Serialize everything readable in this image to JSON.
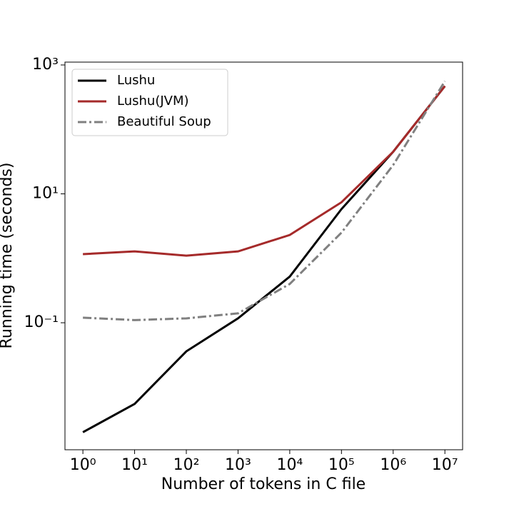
{
  "chart_data": {
    "type": "line",
    "xlabel": "Number of tokens in C file",
    "ylabel": "Running time (seconds)",
    "x": [
      1,
      10,
      100,
      1000,
      10000,
      100000,
      1000000,
      10000000
    ],
    "series": [
      {
        "name": "Lushu",
        "color": "#000000",
        "linestyle": "solid",
        "values": [
          0.002,
          0.0055,
          0.036,
          0.117,
          0.52,
          5.8,
          45,
          470
        ]
      },
      {
        "name": "Lushu(JVM)",
        "color": "#a52a2a",
        "linestyle": "solid",
        "values": [
          1.16,
          1.28,
          1.1,
          1.28,
          2.3,
          7.4,
          45,
          470
        ]
      },
      {
        "name": "Beautiful Soup",
        "color": "#808080",
        "linestyle": "dashdot",
        "values": [
          0.12,
          0.11,
          0.117,
          0.14,
          0.4,
          2.5,
          28,
          560
        ]
      }
    ],
    "xscale": "log",
    "yscale": "log",
    "xlim": [
      0.45,
      22000000
    ],
    "ylim": [
      0.00107,
      1107
    ],
    "xticks": [
      {
        "value": 1,
        "label": "10⁰"
      },
      {
        "value": 10,
        "label": "10¹"
      },
      {
        "value": 100,
        "label": "10²"
      },
      {
        "value": 1000,
        "label": "10³"
      },
      {
        "value": 10000,
        "label": "10⁴"
      },
      {
        "value": 100000,
        "label": "10⁵"
      },
      {
        "value": 1000000,
        "label": "10⁶"
      },
      {
        "value": 10000000,
        "label": "10⁷"
      }
    ],
    "yticks": [
      {
        "value": 0.1,
        "label": "10⁻¹"
      },
      {
        "value": 10,
        "label": "10¹"
      },
      {
        "value": 1000,
        "label": "10³"
      }
    ],
    "legend": "upper left"
  }
}
